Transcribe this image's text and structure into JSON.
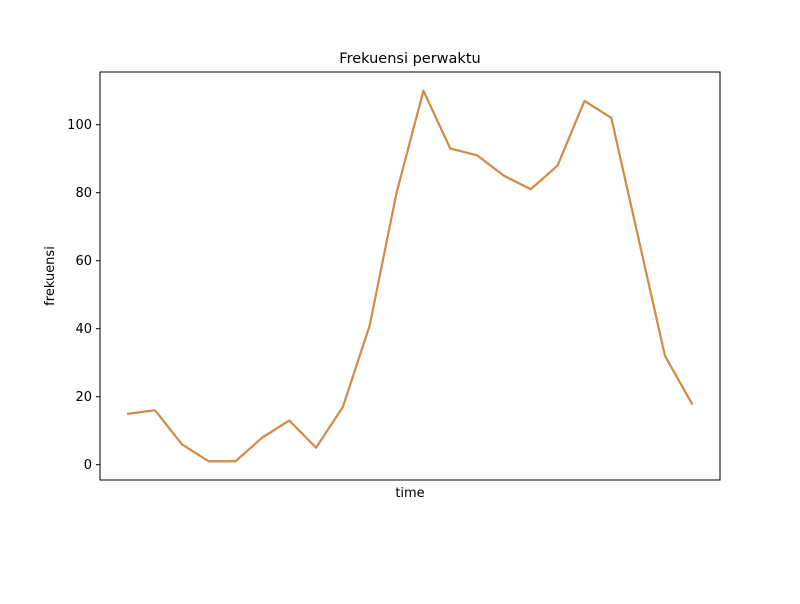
{
  "chart_data": {
    "type": "line",
    "title": "Frekuensi perwaktu",
    "xlabel": "time",
    "ylabel": "frekuensi",
    "ylim": [
      -4.5,
      115.5
    ],
    "yticks": [
      0,
      20,
      40,
      60,
      80,
      100
    ],
    "ytick_labels": [
      "0",
      "20",
      "40",
      "60",
      "80",
      "100"
    ],
    "xticks_visible": false,
    "grid": false,
    "x": [
      0,
      1,
      2,
      3,
      4,
      5,
      6,
      7,
      8,
      9,
      10,
      11,
      12,
      13,
      14,
      15,
      16,
      17,
      18,
      19,
      20,
      21
    ],
    "series": [
      {
        "color": "#1f77b4",
        "values": [
          15,
          16,
          6,
          1,
          1,
          8,
          13,
          5,
          17,
          41,
          80,
          110,
          93,
          91,
          85,
          81,
          88,
          107,
          102,
          67,
          32,
          18
        ]
      },
      {
        "color": "#dd8a3a",
        "values": [
          15,
          16,
          6,
          1,
          1,
          8,
          13,
          5,
          17,
          41,
          80,
          110,
          93,
          91,
          85,
          81,
          88,
          107,
          102,
          67,
          32,
          18
        ]
      }
    ]
  }
}
